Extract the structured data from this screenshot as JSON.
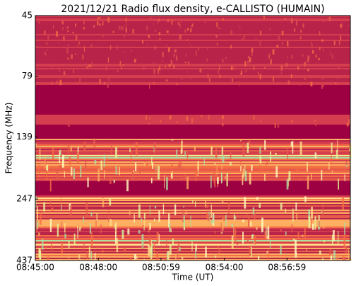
{
  "chart_data": {
    "type": "spectrogram",
    "title": "2021/12/21  Radio flux density, e-CALLISTO (HUMAIN)",
    "x_label": "Time (UT)",
    "y_label": "Frequency (MHz)",
    "xlim": [
      "08:45:00",
      "09:00:00"
    ],
    "xticks": [
      "08:45:00",
      "08:48:00",
      "08:50:59",
      "08:54:00",
      "08:56:59"
    ],
    "ylim": [
      45,
      437
    ],
    "y_log": true,
    "y_inverted": true,
    "yticks": [
      45,
      79,
      139,
      247,
      437
    ]
  }
}
